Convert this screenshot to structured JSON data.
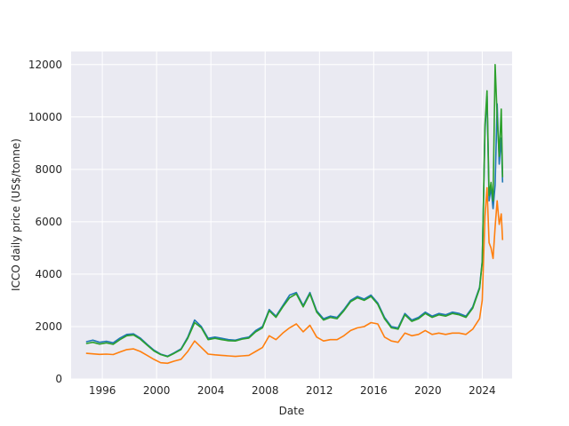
{
  "chart_data": {
    "type": "line",
    "title": "",
    "xlabel": "Date",
    "ylabel": "ICCO daily price (US$/tonne)",
    "xlim": [
      1993.7,
      2026.2
    ],
    "ylim": [
      0,
      12500
    ],
    "grid": true,
    "x_ticks": [
      {
        "value": 1996,
        "label": "1996"
      },
      {
        "value": 2000,
        "label": "2000"
      },
      {
        "value": 2004,
        "label": "2004"
      },
      {
        "value": 2008,
        "label": "2008"
      },
      {
        "value": 2012,
        "label": "2012"
      },
      {
        "value": 2016,
        "label": "2016"
      },
      {
        "value": 2020,
        "label": "2020"
      },
      {
        "value": 2024,
        "label": "2024"
      }
    ],
    "y_ticks": [
      {
        "value": 0,
        "label": "0"
      },
      {
        "value": 2000,
        "label": "2000"
      },
      {
        "value": 4000,
        "label": "4000"
      },
      {
        "value": 6000,
        "label": "6000"
      },
      {
        "value": 8000,
        "label": "8000"
      },
      {
        "value": 10000,
        "label": "10000"
      },
      {
        "value": 12000,
        "label": "12000"
      }
    ],
    "series": [
      {
        "color": "#1f77b4",
        "x": [
          1994.8,
          1995.3,
          1995.8,
          1996.3,
          1996.8,
          1997.3,
          1997.8,
          1998.3,
          1998.8,
          1999.3,
          1999.8,
          2000.3,
          2000.8,
          2001.3,
          2001.8,
          2002.3,
          2002.8,
          2003.3,
          2003.8,
          2004.3,
          2004.8,
          2005.3,
          2005.8,
          2006.3,
          2006.8,
          2007.3,
          2007.8,
          2008.3,
          2008.8,
          2009.3,
          2009.8,
          2010.3,
          2010.8,
          2011.3,
          2011.8,
          2012.3,
          2012.8,
          2013.3,
          2013.8,
          2014.3,
          2014.8,
          2015.3,
          2015.8,
          2016.3,
          2016.8,
          2017.3,
          2017.8,
          2018.3,
          2018.8,
          2019.3,
          2019.8,
          2020.3,
          2020.8,
          2021.3,
          2021.8,
          2022.3,
          2022.8,
          2023.3,
          2023.8,
          2024.0,
          2024.2,
          2024.35,
          2024.5,
          2024.65,
          2024.8,
          2024.95,
          2025.1,
          2025.25,
          2025.4,
          2025.5
        ],
        "y": [
          1420,
          1480,
          1400,
          1440,
          1380,
          1560,
          1700,
          1720,
          1560,
          1320,
          1100,
          950,
          870,
          1000,
          1150,
          1600,
          2250,
          2000,
          1550,
          1600,
          1550,
          1500,
          1480,
          1550,
          1600,
          1850,
          2000,
          2650,
          2400,
          2800,
          3200,
          3300,
          2800,
          3300,
          2600,
          2300,
          2400,
          2350,
          2650,
          3000,
          3150,
          3050,
          3200,
          2900,
          2350,
          2000,
          1950,
          2500,
          2250,
          2350,
          2550,
          2400,
          2500,
          2450,
          2550,
          2500,
          2400,
          2750,
          3500,
          4500,
          9500,
          10800,
          6800,
          7300,
          6500,
          7400,
          10500,
          8200,
          9200,
          7500
        ]
      },
      {
        "color": "#ff7f0e",
        "x": [
          1994.8,
          1995.3,
          1995.8,
          1996.3,
          1996.8,
          1997.3,
          1997.8,
          1998.3,
          1998.8,
          1999.3,
          1999.8,
          2000.3,
          2000.8,
          2001.3,
          2001.8,
          2002.3,
          2002.8,
          2003.3,
          2003.8,
          2004.3,
          2004.8,
          2005.3,
          2005.8,
          2006.3,
          2006.8,
          2007.3,
          2007.8,
          2008.3,
          2008.8,
          2009.3,
          2009.8,
          2010.3,
          2010.8,
          2011.3,
          2011.8,
          2012.3,
          2012.8,
          2013.3,
          2013.8,
          2014.3,
          2014.8,
          2015.3,
          2015.8,
          2016.3,
          2016.8,
          2017.3,
          2017.8,
          2018.3,
          2018.8,
          2019.3,
          2019.8,
          2020.3,
          2020.8,
          2021.3,
          2021.8,
          2022.3,
          2022.8,
          2023.3,
          2023.8,
          2024.0,
          2024.2,
          2024.35,
          2024.5,
          2024.65,
          2024.8,
          2024.95,
          2025.1,
          2025.25,
          2025.4,
          2025.5
        ],
        "y": [
          980,
          960,
          940,
          950,
          930,
          1030,
          1120,
          1150,
          1050,
          900,
          750,
          620,
          600,
          680,
          750,
          1050,
          1450,
          1200,
          950,
          920,
          900,
          880,
          860,
          880,
          900,
          1050,
          1200,
          1650,
          1500,
          1750,
          1950,
          2100,
          1800,
          2050,
          1600,
          1450,
          1500,
          1500,
          1650,
          1850,
          1950,
          2000,
          2150,
          2100,
          1600,
          1450,
          1400,
          1750,
          1650,
          1700,
          1850,
          1700,
          1750,
          1700,
          1750,
          1750,
          1700,
          1900,
          2300,
          3000,
          6200,
          7300,
          5200,
          5000,
          4600,
          5800,
          6800,
          5900,
          6300,
          5300
        ]
      },
      {
        "color": "#2ca02c",
        "x": [
          1994.8,
          1995.3,
          1995.8,
          1996.3,
          1996.8,
          1997.3,
          1997.8,
          1998.3,
          1998.8,
          1999.3,
          1999.8,
          2000.3,
          2000.8,
          2001.3,
          2001.8,
          2002.3,
          2002.8,
          2003.3,
          2003.8,
          2004.3,
          2004.8,
          2005.3,
          2005.8,
          2006.3,
          2006.8,
          2007.3,
          2007.8,
          2008.3,
          2008.8,
          2009.3,
          2009.8,
          2010.3,
          2010.8,
          2011.3,
          2011.8,
          2012.3,
          2012.8,
          2013.3,
          2013.8,
          2014.3,
          2014.8,
          2015.3,
          2015.8,
          2016.3,
          2016.8,
          2017.3,
          2017.8,
          2018.3,
          2018.8,
          2019.3,
          2019.8,
          2020.3,
          2020.8,
          2021.3,
          2021.8,
          2022.3,
          2022.8,
          2023.3,
          2023.8,
          2024.0,
          2024.2,
          2024.35,
          2024.5,
          2024.65,
          2024.8,
          2024.95,
          2025.1,
          2025.25,
          2025.4,
          2025.5
        ],
        "y": [
          1350,
          1400,
          1330,
          1380,
          1320,
          1500,
          1650,
          1680,
          1520,
          1290,
          1070,
          930,
          850,
          980,
          1120,
          1550,
          2150,
          1950,
          1500,
          1550,
          1500,
          1460,
          1450,
          1520,
          1560,
          1800,
          1950,
          2600,
          2350,
          2750,
          3100,
          3250,
          2750,
          3250,
          2550,
          2250,
          2350,
          2300,
          2600,
          2950,
          3100,
          3000,
          3150,
          2850,
          2300,
          1950,
          1900,
          2450,
          2200,
          2300,
          2500,
          2350,
          2450,
          2400,
          2500,
          2450,
          2350,
          2700,
          3450,
          4450,
          9700,
          11000,
          7000,
          7500,
          6800,
          12000,
          10000,
          8500,
          10300,
          7700
        ]
      }
    ]
  }
}
